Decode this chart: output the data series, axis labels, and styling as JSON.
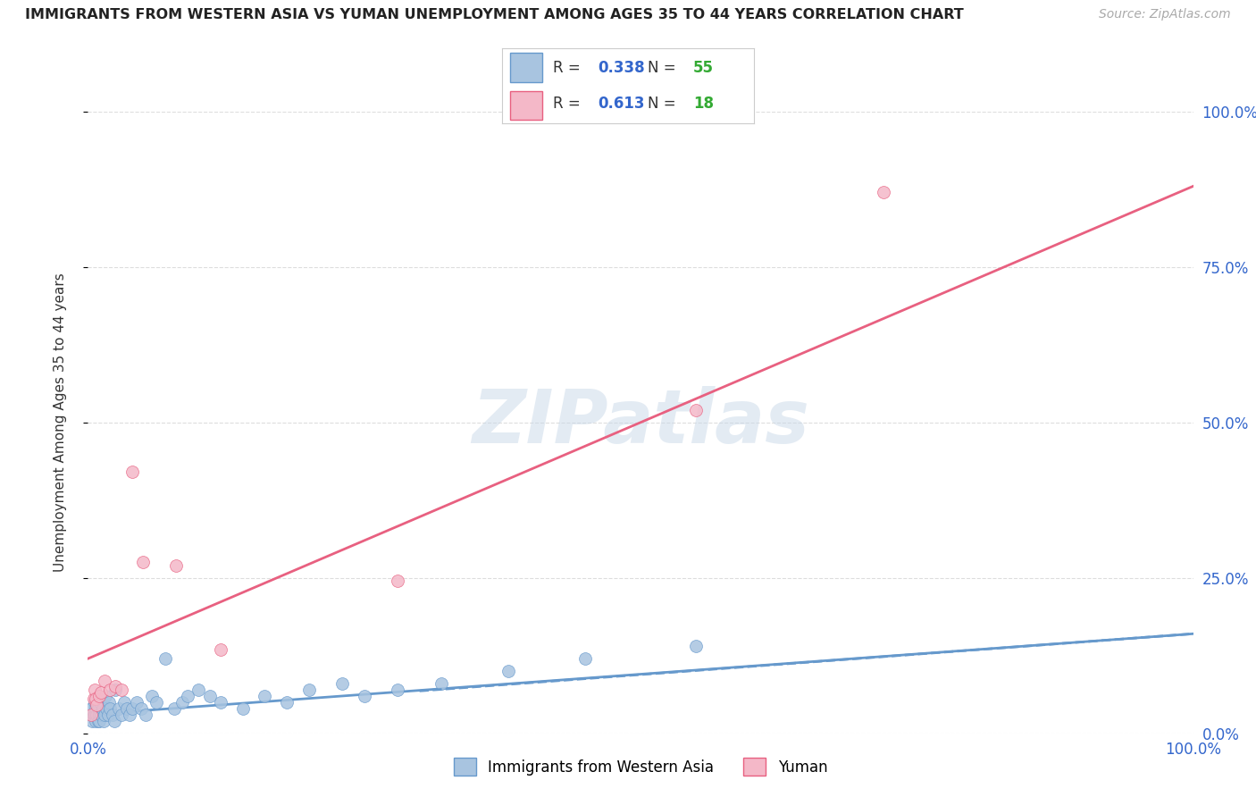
{
  "title": "IMMIGRANTS FROM WESTERN ASIA VS YUMAN UNEMPLOYMENT AMONG AGES 35 TO 44 YEARS CORRELATION CHART",
  "source": "Source: ZipAtlas.com",
  "xlabel": "",
  "ylabel": "Unemployment Among Ages 35 to 44 years",
  "xlim": [
    0.0,
    1.0
  ],
  "ylim": [
    0.0,
    1.0
  ],
  "xtick_labels": [
    "0.0%",
    "100.0%"
  ],
  "ytick_positions": [
    0.0,
    0.25,
    0.5,
    0.75,
    1.0
  ],
  "watermark": "ZIPatlas",
  "series1_name": "Immigrants from Western Asia",
  "series1_R": "0.338",
  "series1_N": "55",
  "series1_color": "#a8c4e0",
  "series1_line_color": "#6699cc",
  "series2_name": "Yuman",
  "series2_R": "0.613",
  "series2_N": "18",
  "series2_color": "#f4b8c8",
  "series2_line_color": "#e86080",
  "legend_R_color": "#3366cc",
  "legend_N_color": "#33aa33",
  "series1_x": [
    0.003,
    0.004,
    0.005,
    0.006,
    0.006,
    0.007,
    0.007,
    0.008,
    0.008,
    0.009,
    0.009,
    0.01,
    0.01,
    0.011,
    0.012,
    0.013,
    0.014,
    0.015,
    0.016,
    0.017,
    0.018,
    0.019,
    0.02,
    0.022,
    0.024,
    0.025,
    0.028,
    0.03,
    0.033,
    0.035,
    0.038,
    0.04,
    0.044,
    0.048,
    0.052,
    0.058,
    0.062,
    0.07,
    0.078,
    0.085,
    0.09,
    0.1,
    0.11,
    0.12,
    0.14,
    0.16,
    0.18,
    0.2,
    0.23,
    0.25,
    0.28,
    0.32,
    0.38,
    0.45,
    0.55
  ],
  "series1_y": [
    0.04,
    0.02,
    0.03,
    0.05,
    0.03,
    0.04,
    0.02,
    0.03,
    0.05,
    0.02,
    0.04,
    0.03,
    0.02,
    0.05,
    0.03,
    0.04,
    0.02,
    0.03,
    0.06,
    0.04,
    0.03,
    0.05,
    0.04,
    0.03,
    0.02,
    0.07,
    0.04,
    0.03,
    0.05,
    0.04,
    0.03,
    0.04,
    0.05,
    0.04,
    0.03,
    0.06,
    0.05,
    0.12,
    0.04,
    0.05,
    0.06,
    0.07,
    0.06,
    0.05,
    0.04,
    0.06,
    0.05,
    0.07,
    0.08,
    0.06,
    0.07,
    0.08,
    0.1,
    0.12,
    0.14
  ],
  "series2_x": [
    0.003,
    0.005,
    0.006,
    0.007,
    0.008,
    0.01,
    0.012,
    0.015,
    0.02,
    0.025,
    0.03,
    0.04,
    0.05,
    0.08,
    0.12,
    0.28,
    0.55,
    0.72
  ],
  "series2_y": [
    0.03,
    0.055,
    0.07,
    0.055,
    0.045,
    0.06,
    0.065,
    0.085,
    0.07,
    0.075,
    0.07,
    0.42,
    0.275,
    0.27,
    0.135,
    0.245,
    0.52,
    0.87
  ],
  "series1_trend_x": [
    0.0,
    1.0
  ],
  "series1_trend_y": [
    0.03,
    0.16
  ],
  "series2_trend_x": [
    0.0,
    1.0
  ],
  "series2_trend_y": [
    0.12,
    0.88
  ],
  "bg_color": "#ffffff",
  "grid_color": "#dddddd"
}
